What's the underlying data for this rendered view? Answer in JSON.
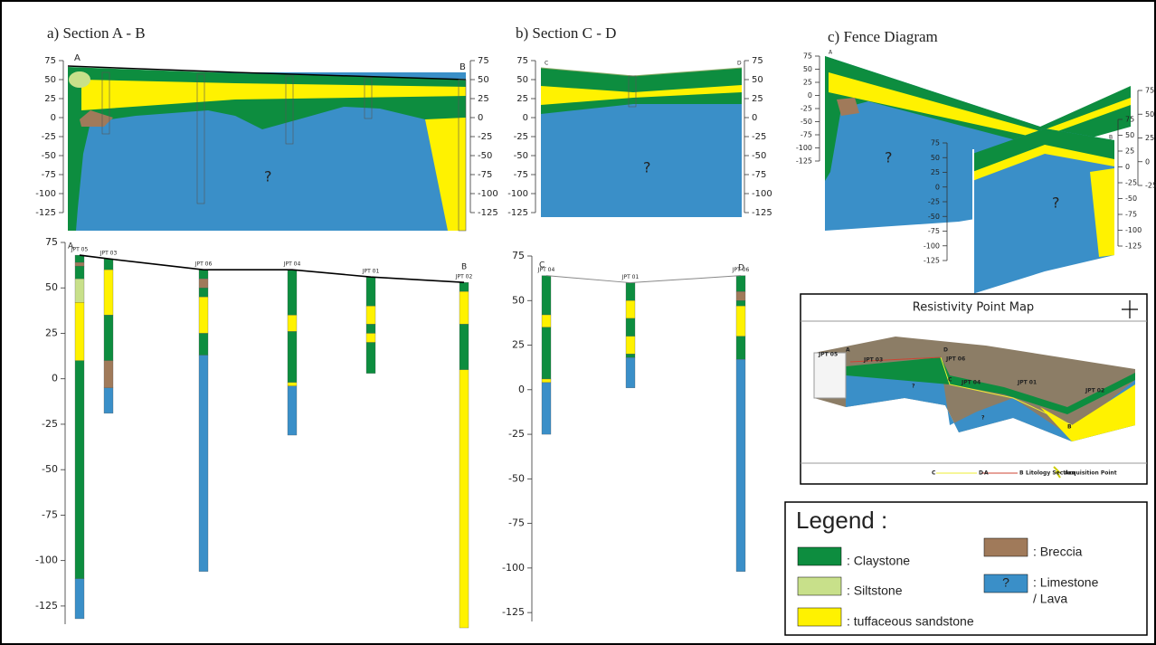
{
  "section_ab": {
    "title": "a) Section A - B",
    "ylim": [
      -125,
      75
    ],
    "yticks": [
      75,
      50,
      25,
      0,
      -25,
      -50,
      -75,
      -100,
      -125
    ],
    "y2ticks": [
      75,
      50,
      25,
      0,
      -25,
      -50,
      -75,
      -100,
      -125
    ],
    "start": "A",
    "end": "B",
    "unknown": "?"
  },
  "section_cd": {
    "title": "b) Section C - D",
    "ylim": [
      -125,
      75
    ],
    "yticks": [
      75,
      50,
      25,
      0,
      -25,
      -50,
      -75,
      -100,
      -125
    ],
    "y2ticks": [
      75,
      50,
      25,
      0,
      -25,
      -50,
      -75,
      -100,
      -125
    ],
    "start": "C",
    "end": "D",
    "unknown": "?"
  },
  "fence": {
    "title": "c) Fence Diagram",
    "start": "A",
    "end": "B",
    "unknown": [
      "?",
      "?"
    ],
    "axes": [
      {
        "ylim": [
          -125,
          75
        ],
        "ticks": [
          75,
          50,
          25,
          0,
          -25,
          -50,
          -75,
          -100,
          -125
        ]
      },
      {
        "ylim": [
          -125,
          75
        ],
        "ticks": [
          75,
          50,
          25,
          0,
          -25,
          -50,
          -75,
          -100,
          -125
        ]
      },
      {
        "ylim": [
          -125,
          75
        ],
        "ticks": [
          75,
          50,
          25,
          0,
          -25,
          -50,
          -75,
          -100,
          -125
        ]
      },
      {
        "ylim": [
          -25,
          75
        ],
        "ticks": [
          75,
          50,
          25,
          0,
          -25
        ]
      }
    ]
  },
  "logs_ab": {
    "ylim": [
      -135,
      75
    ],
    "yticks": [
      75,
      50,
      25,
      0,
      -25,
      -50,
      -75,
      -100,
      -125
    ],
    "start": "A",
    "end": "B",
    "wells": [
      {
        "name": "JPT 05",
        "layers": [
          {
            "top": 68,
            "bottom": 64,
            "color": "#0d8d3f"
          },
          {
            "top": 64,
            "bottom": 62,
            "color": "#a07a5a"
          },
          {
            "top": 62,
            "bottom": 55,
            "color": "#0d8d3f"
          },
          {
            "top": 55,
            "bottom": 42,
            "color": "#c8e08a"
          },
          {
            "top": 42,
            "bottom": 10,
            "color": "#fff200"
          },
          {
            "top": 10,
            "bottom": -110,
            "color": "#0d8d3f"
          },
          {
            "top": -110,
            "bottom": -132,
            "color": "#3a8fc8"
          }
        ]
      },
      {
        "name": "JPT 03",
        "layers": [
          {
            "top": 66,
            "bottom": 60,
            "color": "#0d8d3f"
          },
          {
            "top": 60,
            "bottom": 35,
            "color": "#fff200"
          },
          {
            "top": 35,
            "bottom": 10,
            "color": "#0d8d3f"
          },
          {
            "top": 10,
            "bottom": -5,
            "color": "#a07a5a"
          },
          {
            "top": -5,
            "bottom": -19,
            "color": "#3a8fc8"
          }
        ]
      },
      {
        "name": "JPT 06",
        "layers": [
          {
            "top": 60,
            "bottom": 55,
            "color": "#0d8d3f"
          },
          {
            "top": 55,
            "bottom": 50,
            "color": "#a07a5a"
          },
          {
            "top": 50,
            "bottom": 45,
            "color": "#0d8d3f"
          },
          {
            "top": 45,
            "bottom": 25,
            "color": "#fff200"
          },
          {
            "top": 25,
            "bottom": 13,
            "color": "#0d8d3f"
          },
          {
            "top": 13,
            "bottom": -106,
            "color": "#3a8fc8"
          }
        ]
      },
      {
        "name": "JPT 04",
        "layers": [
          {
            "top": 60,
            "bottom": 35,
            "color": "#0d8d3f"
          },
          {
            "top": 35,
            "bottom": 26,
            "color": "#fff200"
          },
          {
            "top": 26,
            "bottom": -2,
            "color": "#0d8d3f"
          },
          {
            "top": -2,
            "bottom": -4,
            "color": "#fff200"
          },
          {
            "top": -4,
            "bottom": -31,
            "color": "#3a8fc8"
          }
        ]
      },
      {
        "name": "JPT 01",
        "layers": [
          {
            "top": 56,
            "bottom": 40,
            "color": "#0d8d3f"
          },
          {
            "top": 40,
            "bottom": 30,
            "color": "#fff200"
          },
          {
            "top": 30,
            "bottom": 25,
            "color": "#0d8d3f"
          },
          {
            "top": 25,
            "bottom": 20,
            "color": "#fff200"
          },
          {
            "top": 20,
            "bottom": 3,
            "color": "#0d8d3f"
          }
        ]
      },
      {
        "name": "JPT 02",
        "layers": [
          {
            "top": 53,
            "bottom": 48,
            "color": "#0d8d3f"
          },
          {
            "top": 48,
            "bottom": 30,
            "color": "#fff200"
          },
          {
            "top": 30,
            "bottom": 5,
            "color": "#0d8d3f"
          },
          {
            "top": 5,
            "bottom": -137,
            "color": "#fff200"
          }
        ]
      }
    ]
  },
  "logs_cd": {
    "ylim": [
      -130,
      75
    ],
    "yticks": [
      75,
      50,
      25,
      0,
      -25,
      -50,
      -75,
      -100,
      -125
    ],
    "start": "C",
    "end": "D",
    "wells": [
      {
        "name": "JPT 04",
        "layers": [
          {
            "top": 64,
            "bottom": 42,
            "color": "#0d8d3f"
          },
          {
            "top": 42,
            "bottom": 35,
            "color": "#fff200"
          },
          {
            "top": 35,
            "bottom": 6,
            "color": "#0d8d3f"
          },
          {
            "top": 6,
            "bottom": 4,
            "color": "#fff200"
          },
          {
            "top": 4,
            "bottom": -25,
            "color": "#3a8fc8"
          }
        ]
      },
      {
        "name": "JPT 01",
        "layers": [
          {
            "top": 60,
            "bottom": 50,
            "color": "#0d8d3f"
          },
          {
            "top": 50,
            "bottom": 40,
            "color": "#fff200"
          },
          {
            "top": 40,
            "bottom": 30,
            "color": "#0d8d3f"
          },
          {
            "top": 30,
            "bottom": 20,
            "color": "#fff200"
          },
          {
            "top": 20,
            "bottom": 18,
            "color": "#0d8d3f"
          },
          {
            "top": 18,
            "bottom": 1,
            "color": "#3a8fc8"
          }
        ]
      },
      {
        "name": "JPT 06",
        "layers": [
          {
            "top": 64,
            "bottom": 55,
            "color": "#0d8d3f"
          },
          {
            "top": 55,
            "bottom": 50,
            "color": "#a07a5a"
          },
          {
            "top": 50,
            "bottom": 47,
            "color": "#0d8d3f"
          },
          {
            "top": 47,
            "bottom": 30,
            "color": "#fff200"
          },
          {
            "top": 30,
            "bottom": 17,
            "color": "#0d8d3f"
          },
          {
            "top": 17,
            "bottom": -102,
            "color": "#3a8fc8"
          }
        ]
      }
    ]
  },
  "map": {
    "title": "Resistivity Point Map",
    "points": [
      "JPT 05",
      "JPT 03",
      "JPT 06",
      "JPT 04",
      "JPT 01",
      "JPT 02"
    ],
    "letters": [
      "A",
      "B",
      "C",
      "D"
    ],
    "unknown": [
      "?",
      "?"
    ],
    "key": {
      "cd_start": "C",
      "cd_end": "D",
      "ab_start": "A",
      "ab_end": "B",
      "section": "Litology Section",
      "point": "Acquisition Point"
    }
  },
  "legend": {
    "title": "Legend :",
    "items": [
      {
        "label": ": Claystone",
        "color": "#0d8d3f"
      },
      {
        "label": ": Breccia",
        "color": "#a07a5a"
      },
      {
        "label": ": Siltstone",
        "color": "#c8e08a"
      },
      {
        "label": [
          ": Limestone",
          "/ Lava"
        ],
        "color": "#3a8fc8",
        "mark": "?"
      },
      {
        "label": ": tuffaceous sandstone",
        "color": "#fff200"
      }
    ]
  }
}
